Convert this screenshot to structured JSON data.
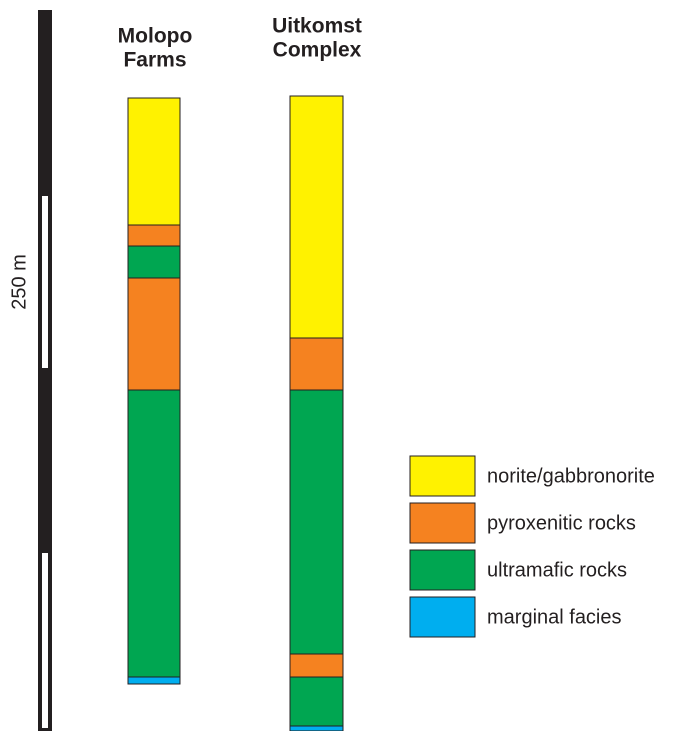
{
  "scale_bar": {
    "label": "250 m"
  },
  "columns": [
    {
      "title_lines": [
        "Molopo",
        "Farms"
      ]
    },
    {
      "title_lines": [
        "Uitkomst",
        "Complex"
      ]
    }
  ],
  "legend": [
    "norite/gabbronorite",
    "pyroxenitic rocks",
    "ultramafic rocks",
    "marginal facies"
  ]
}
